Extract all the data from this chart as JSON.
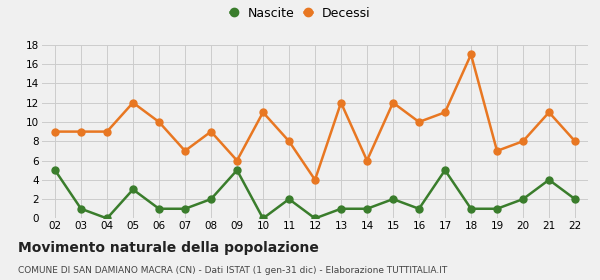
{
  "years": [
    "02",
    "03",
    "04",
    "05",
    "06",
    "07",
    "08",
    "09",
    "10",
    "11",
    "12",
    "13",
    "14",
    "15",
    "16",
    "17",
    "18",
    "19",
    "20",
    "21",
    "22"
  ],
  "nascite": [
    5,
    1,
    0,
    3,
    1,
    1,
    2,
    5,
    0,
    2,
    0,
    1,
    1,
    2,
    1,
    5,
    1,
    1,
    2,
    4,
    2
  ],
  "decessi": [
    9,
    9,
    9,
    12,
    10,
    7,
    9,
    6,
    11,
    8,
    4,
    12,
    6,
    12,
    10,
    11,
    17,
    7,
    8,
    11,
    8
  ],
  "nascite_color": "#3a7d2c",
  "decessi_color": "#e87722",
  "title": "Movimento naturale della popolazione",
  "subtitle": "COMUNE DI SAN DAMIANO MACRA (CN) - Dati ISTAT (1 gen-31 dic) - Elaborazione TUTTITALIA.IT",
  "legend_nascite": "Nascite",
  "legend_decessi": "Decessi",
  "ylim": [
    0,
    18
  ],
  "yticks": [
    0,
    2,
    4,
    6,
    8,
    10,
    12,
    14,
    16,
    18
  ],
  "bg_color": "#f0f0f0",
  "grid_color": "#cccccc",
  "marker_size": 5,
  "line_width": 1.8
}
